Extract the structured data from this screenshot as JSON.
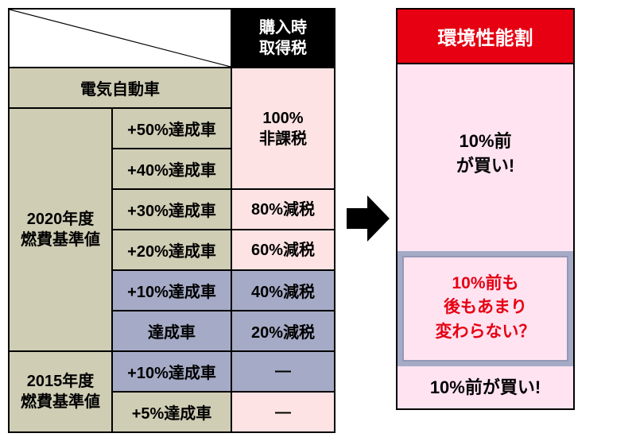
{
  "table": {
    "header_tax": "購入時\n取得税",
    "ev_row": "電気自動車",
    "group2020_label": "2020年度\n燃費基準値",
    "group2015_label": "2015年度\n燃費基準値",
    "rows2020": [
      {
        "sub": "+50%達成車",
        "val": "100%\n非課税",
        "sub_bg": "tan",
        "val_bg": "pink"
      },
      {
        "sub": "+40%達成車",
        "val": "",
        "sub_bg": "tan",
        "val_bg": "pink"
      },
      {
        "sub": "+30%達成車",
        "val": "80%減税",
        "sub_bg": "tan",
        "val_bg": "pink"
      },
      {
        "sub": "+20%達成車",
        "val": "60%減税",
        "sub_bg": "tan",
        "val_bg": "pink"
      },
      {
        "sub": "+10%達成車",
        "val": "40%減税",
        "sub_bg": "blue",
        "val_bg": "blue"
      },
      {
        "sub": "達成車",
        "val": "20%減税",
        "sub_bg": "blue",
        "val_bg": "blue"
      }
    ],
    "rows2015": [
      {
        "sub": "+10%達成車",
        "val": "—",
        "sub_bg": "blue",
        "val_bg": "blue"
      },
      {
        "sub": "+5%達成車",
        "val": "—",
        "sub_bg": "tan",
        "val_bg": "pink"
      }
    ],
    "colors": {
      "tan": "#cfcdb4",
      "blue": "#a5abc6",
      "pink": "#fde3e3",
      "black": "#000000",
      "white": "#ffffff"
    }
  },
  "right": {
    "header": "環境性能割",
    "box1": "10%前\nが買い!",
    "box2": "10%前も\n後もあまり\n変わらない？",
    "box3": "10%前が買い!",
    "header_bg": "#e60012",
    "body_pink": "#ffe3f1",
    "body_blue": "#a5abc6",
    "red_text": "#e60012"
  }
}
